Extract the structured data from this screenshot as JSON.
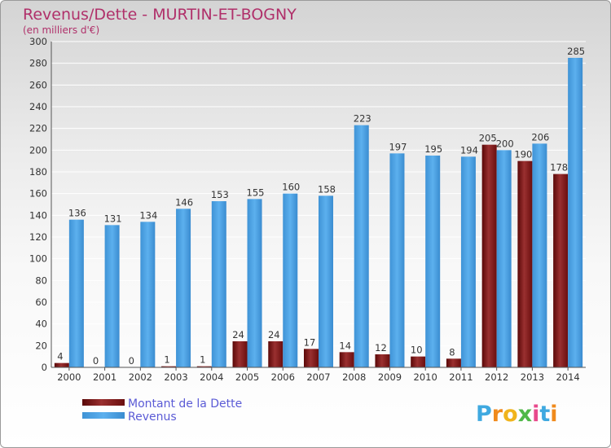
{
  "chart_data": {
    "type": "bar",
    "title": "Revenus/Dette - MURTIN-ET-BOGNY",
    "subtitle": "(en milliers d'€)",
    "categories": [
      "2000",
      "2001",
      "2002",
      "2003",
      "2004",
      "2005",
      "2006",
      "2007",
      "2008",
      "2009",
      "2010",
      "2011",
      "2012",
      "2013",
      "2014"
    ],
    "series": [
      {
        "name": "Montant de la Dette",
        "color": "#7a1a1a",
        "values": [
          4,
          0,
          0,
          1,
          1,
          24,
          24,
          17,
          14,
          12,
          10,
          8,
          205,
          190,
          178
        ]
      },
      {
        "name": "Revenus",
        "color": "#4aa3e6",
        "values": [
          136,
          131,
          134,
          146,
          153,
          155,
          160,
          158,
          223,
          197,
          195,
          194,
          200,
          206,
          285
        ]
      }
    ],
    "ylim": [
      0,
      300
    ],
    "yticks": [
      0,
      20,
      40,
      60,
      80,
      100,
      120,
      140,
      160,
      180,
      200,
      220,
      240,
      260,
      280,
      300
    ],
    "grid": true,
    "legend_position": "bottom-left"
  },
  "logo": {
    "letters": [
      "P",
      "r",
      "o",
      "x",
      "i",
      "t",
      "i"
    ]
  }
}
